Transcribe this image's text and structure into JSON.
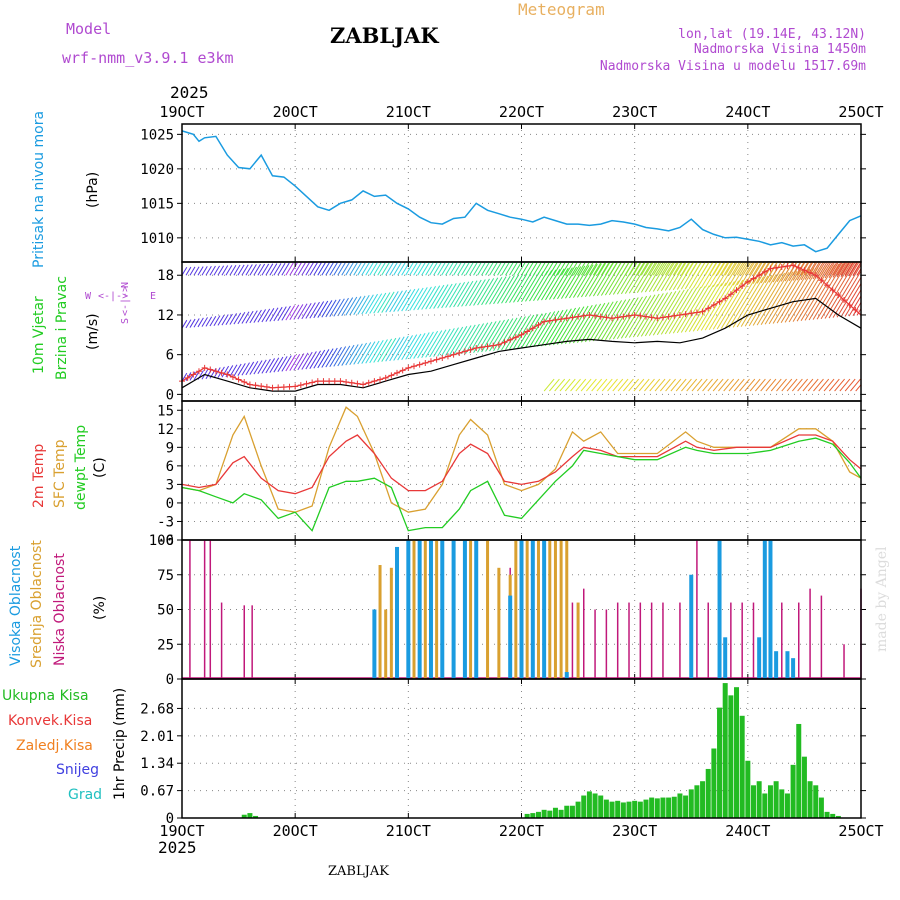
{
  "header": {
    "model_label": "Model",
    "model_name": "wrf-nmm_v3.9.1  e3km",
    "station": "ZABLJAK",
    "meteogram_label": "Meteogram",
    "lonlat": "lon,lat (19.14E, 43.12N)",
    "altitude": "Nadmorska Visina 1450m",
    "model_altitude": "Nadmorska Visina u modelu 1517.69m",
    "footer_station": "ZABLJAK",
    "credit": "made by Angel",
    "year_top": "2025",
    "year_bottom": "2025"
  },
  "colors": {
    "pressure": "#1a9be0",
    "temp2m": "#e83838",
    "sfc": "#d9a030",
    "dewpt": "#22cc22",
    "high_cloud": "#1a9be0",
    "mid_cloud": "#d9a030",
    "low_cloud": "#c0187a",
    "precip": "#22bb22",
    "title_purple": "#b04ad0",
    "meteogram_orange": "#e8b060",
    "precip_labels": [
      "#22bb22",
      "#e83838",
      "#f08020",
      "#4040e0",
      "#20c0c0"
    ]
  },
  "chart_data": {
    "type": "meteogram",
    "x_ticks": [
      "19OCT",
      "20OCT",
      "21OCT",
      "22OCT",
      "23OCT",
      "24OCT",
      "25OCT"
    ],
    "x_range_days": [
      0,
      6
    ],
    "panels": [
      {
        "id": "pressure",
        "type": "line",
        "title": "Pritisak na nivou mora",
        "unit": "(hPa)",
        "ylim": [
          1006.5,
          1026.5
        ],
        "yticks": [
          1010,
          1015,
          1020,
          1025
        ],
        "x": [
          0,
          0.1,
          0.15,
          0.2,
          0.3,
          0.4,
          0.5,
          0.6,
          0.7,
          0.8,
          0.9,
          1.0,
          1.1,
          1.2,
          1.3,
          1.4,
          1.5,
          1.6,
          1.7,
          1.8,
          1.9,
          2.0,
          2.1,
          2.2,
          2.3,
          2.4,
          2.5,
          2.6,
          2.7,
          2.8,
          2.9,
          3.0,
          3.1,
          3.2,
          3.3,
          3.4,
          3.5,
          3.6,
          3.7,
          3.8,
          3.9,
          4.0,
          4.1,
          4.2,
          4.3,
          4.4,
          4.5,
          4.6,
          4.7,
          4.8,
          4.9,
          5.0,
          5.1,
          5.2,
          5.3,
          5.4,
          5.5,
          5.6,
          5.7,
          5.8,
          5.9,
          6.0
        ],
        "series": [
          {
            "name": "Pritisak",
            "values": [
              1025.5,
              1025.0,
              1024.0,
              1024.5,
              1024.7,
              1022.0,
              1020.2,
              1020.0,
              1022.0,
              1019.0,
              1018.8,
              1017.5,
              1016.0,
              1014.5,
              1014.0,
              1015.0,
              1015.5,
              1016.8,
              1016.0,
              1016.2,
              1015.0,
              1014.2,
              1013.0,
              1012.2,
              1012.0,
              1012.8,
              1013.0,
              1015.0,
              1014.0,
              1013.5,
              1013.0,
              1012.7,
              1012.3,
              1013.0,
              1012.5,
              1012.0,
              1012.0,
              1011.8,
              1012.0,
              1012.5,
              1012.3,
              1012.0,
              1011.5,
              1011.3,
              1011.0,
              1011.5,
              1012.7,
              1011.2,
              1010.5,
              1010.0,
              1010.1,
              1009.8,
              1009.5,
              1009.0,
              1009.3,
              1008.8,
              1009.0,
              1008.0,
              1008.5,
              1010.5,
              1012.5,
              1013.2
            ]
          }
        ]
      },
      {
        "id": "wind",
        "type": "line",
        "title": "10m Vjetar",
        "subtitle": "Brzina i Pravac",
        "unit": "(m/s)",
        "ylim": [
          -1,
          20
        ],
        "yticks": [
          0,
          6,
          12,
          18
        ],
        "x": [
          0,
          0.2,
          0.4,
          0.6,
          0.8,
          1.0,
          1.2,
          1.4,
          1.6,
          1.8,
          2.0,
          2.2,
          2.4,
          2.6,
          2.8,
          3.0,
          3.2,
          3.4,
          3.6,
          3.8,
          4.0,
          4.2,
          4.4,
          4.6,
          4.8,
          5.0,
          5.2,
          5.4,
          5.6,
          5.8,
          6.0
        ],
        "series": [
          {
            "name": "Brzina (red)",
            "values": [
              2.0,
              4.0,
              3.0,
              1.5,
              1.0,
              1.2,
              2.0,
              2.0,
              1.5,
              2.5,
              4.0,
              5.0,
              6.0,
              7.0,
              7.5,
              9.0,
              11.0,
              11.5,
              12.0,
              11.5,
              12.0,
              11.5,
              12.0,
              12.5,
              14.5,
              17.0,
              19.0,
              19.5,
              18.0,
              15.0,
              12.0
            ]
          },
          {
            "name": "Udar (black)",
            "values": [
              1.0,
              3.0,
              2.0,
              1.0,
              0.5,
              0.5,
              1.5,
              1.5,
              1.0,
              2.0,
              3.0,
              3.5,
              4.5,
              5.5,
              6.5,
              7.0,
              7.5,
              8.0,
              8.3,
              8.0,
              7.8,
              8.0,
              7.8,
              8.5,
              10.0,
              12.0,
              13.0,
              14.0,
              14.5,
              12.0,
              10.0
            ]
          }
        ],
        "direction_legend": [
          "N",
          "W",
          "E",
          "S"
        ]
      },
      {
        "id": "temperature",
        "type": "line",
        "titles": [
          "2m Temp",
          "SFC Temp",
          "dewpt Temp"
        ],
        "unit": "(C)",
        "ylim": [
          -6,
          16.5
        ],
        "yticks": [
          -6,
          -3,
          0,
          3,
          6,
          9,
          12,
          15
        ],
        "x": [
          0,
          0.15,
          0.3,
          0.45,
          0.55,
          0.7,
          0.85,
          1.0,
          1.15,
          1.3,
          1.45,
          1.55,
          1.7,
          1.85,
          2.0,
          2.15,
          2.3,
          2.45,
          2.55,
          2.7,
          2.85,
          3.0,
          3.15,
          3.3,
          3.45,
          3.55,
          3.7,
          3.85,
          4.0,
          4.2,
          4.45,
          4.55,
          4.7,
          4.9,
          5.0,
          5.2,
          5.45,
          5.6,
          5.75,
          5.9,
          6.0
        ],
        "series": [
          {
            "name": "2m Temp",
            "values": [
              3.0,
              2.5,
              3.0,
              6.5,
              7.5,
              4.0,
              2.0,
              1.5,
              2.5,
              7.5,
              10.0,
              11.0,
              8.0,
              4.0,
              2.0,
              2.0,
              3.5,
              8.0,
              9.5,
              8.0,
              3.5,
              3.0,
              3.5,
              5.0,
              7.5,
              9.0,
              8.5,
              7.5,
              7.5,
              7.5,
              10.0,
              9.0,
              8.5,
              9.0,
              9.0,
              9.0,
              11.0,
              11.0,
              10.0,
              7.0,
              5.5
            ]
          },
          {
            "name": "SFC Temp",
            "values": [
              2.5,
              2.0,
              3.0,
              11.0,
              14.0,
              6.0,
              -1.0,
              -1.5,
              -0.5,
              9.0,
              15.5,
              14.0,
              8.0,
              0.0,
              -1.5,
              -1.0,
              3.0,
              11.0,
              13.5,
              11.0,
              3.0,
              2.0,
              3.0,
              5.5,
              11.5,
              10.0,
              11.5,
              8.0,
              8.0,
              8.0,
              11.5,
              10.0,
              9.0,
              9.0,
              9.0,
              9.0,
              12.0,
              12.0,
              10.0,
              5.0,
              4.0
            ]
          },
          {
            "name": "dewpt Temp",
            "values": [
              2.5,
              2.0,
              1.0,
              0.0,
              1.5,
              0.5,
              -2.5,
              -1.5,
              -4.5,
              2.5,
              3.5,
              3.5,
              4.0,
              2.5,
              -4.5,
              -4.0,
              -4.0,
              -1.0,
              2.0,
              3.5,
              -2.0,
              -2.5,
              0.5,
              3.5,
              6.0,
              8.5,
              8.0,
              7.5,
              7.0,
              7.0,
              9.0,
              8.5,
              8.0,
              8.0,
              8.0,
              8.5,
              10.0,
              10.5,
              9.5,
              6.5,
              4.0
            ]
          }
        ]
      },
      {
        "id": "clouds",
        "type": "bar",
        "titles": [
          "Visoka Oblacnost",
          "Srednja Oblacnost",
          "Niska Oblacnost"
        ],
        "unit": "(%)",
        "ylim": [
          0,
          100
        ],
        "yticks": [
          0,
          25,
          50,
          75,
          100
        ],
        "low": {
          "x": [
            0.07,
            0.2,
            0.25,
            0.35,
            0.55,
            0.62,
            2.0,
            2.1,
            2.2,
            2.3,
            2.4,
            2.5,
            2.6,
            2.7,
            2.8,
            2.9,
            3.0,
            3.1,
            3.2,
            3.3,
            3.45,
            3.55,
            3.65,
            3.75,
            3.85,
            3.95,
            4.05,
            4.15,
            4.25,
            4.4,
            4.55,
            4.65,
            4.85,
            4.95,
            5.05,
            5.15,
            5.3,
            5.45,
            5.55,
            5.65,
            5.85,
            6.0
          ],
          "values": [
            100,
            100,
            100,
            55,
            53,
            53,
            40,
            55,
            80,
            70,
            60,
            65,
            55,
            50,
            40,
            80,
            100,
            60,
            100,
            100,
            55,
            65,
            50,
            50,
            55,
            55,
            55,
            55,
            55,
            55,
            100,
            55,
            55,
            55,
            55,
            100,
            55,
            55,
            65,
            60,
            25,
            65
          ]
        },
        "mid": {
          "x": [
            1.7,
            1.75,
            1.8,
            1.85,
            2.0,
            2.05,
            2.1,
            2.15,
            2.2,
            2.25,
            2.3,
            2.4,
            2.5,
            2.55,
            2.6,
            2.7,
            2.8,
            2.9,
            2.95,
            3.0,
            3.05,
            3.1,
            3.15,
            3.2,
            3.25,
            3.3,
            3.35,
            3.4,
            3.5
          ],
          "values": [
            50,
            82,
            50,
            80,
            100,
            100,
            100,
            100,
            100,
            100,
            100,
            100,
            100,
            100,
            100,
            100,
            80,
            75,
            100,
            100,
            100,
            100,
            100,
            100,
            100,
            100,
            100,
            100,
            55
          ]
        },
        "high": {
          "x": [
            1.7,
            1.9,
            2.0,
            2.1,
            2.2,
            2.3,
            2.4,
            2.5,
            2.6,
            2.9,
            3.0,
            3.1,
            3.2,
            3.4,
            4.5,
            4.75,
            4.8,
            5.1,
            5.15,
            5.2,
            5.25,
            5.35,
            5.4
          ],
          "values": [
            50,
            95,
            100,
            100,
            100,
            100,
            100,
            100,
            100,
            60,
            100,
            100,
            100,
            5,
            75,
            100,
            30,
            30,
            100,
            100,
            20,
            20,
            15
          ]
        }
      },
      {
        "id": "precip",
        "type": "bar",
        "unit": "(mm)",
        "title": "1hr Precip",
        "legend": [
          "Ukupna Kisa",
          "Konvek.Kisa",
          "Zaledj.Kisa",
          "Snijeg",
          "Grad"
        ],
        "ylim": [
          0,
          3.4
        ],
        "yticks": [
          0,
          0.67,
          1.34,
          2.01,
          2.68
        ],
        "x": [
          0.55,
          0.6,
          0.65,
          3.05,
          3.1,
          3.15,
          3.2,
          3.25,
          3.3,
          3.35,
          3.4,
          3.45,
          3.5,
          3.55,
          3.6,
          3.65,
          3.7,
          3.75,
          3.8,
          3.85,
          3.9,
          3.95,
          4.0,
          4.05,
          4.1,
          4.15,
          4.2,
          4.25,
          4.3,
          4.35,
          4.4,
          4.45,
          4.5,
          4.55,
          4.6,
          4.65,
          4.7,
          4.75,
          4.8,
          4.85,
          4.9,
          4.95,
          5.0,
          5.05,
          5.1,
          5.15,
          5.2,
          5.25,
          5.3,
          5.35,
          5.4,
          5.45,
          5.5,
          5.55,
          5.6,
          5.65,
          5.7,
          5.75,
          5.8
        ],
        "values": [
          0.08,
          0.12,
          0.05,
          0.1,
          0.12,
          0.15,
          0.2,
          0.18,
          0.25,
          0.2,
          0.3,
          0.3,
          0.4,
          0.55,
          0.65,
          0.6,
          0.55,
          0.45,
          0.4,
          0.42,
          0.38,
          0.4,
          0.42,
          0.4,
          0.45,
          0.5,
          0.48,
          0.5,
          0.5,
          0.52,
          0.6,
          0.55,
          0.7,
          0.8,
          0.9,
          1.2,
          1.7,
          2.7,
          3.3,
          3.0,
          3.2,
          2.5,
          1.4,
          0.8,
          0.9,
          0.6,
          0.8,
          0.9,
          0.7,
          0.6,
          1.3,
          2.3,
          1.5,
          0.9,
          0.8,
          0.5,
          0.15,
          0.1,
          0.05
        ]
      }
    ]
  }
}
